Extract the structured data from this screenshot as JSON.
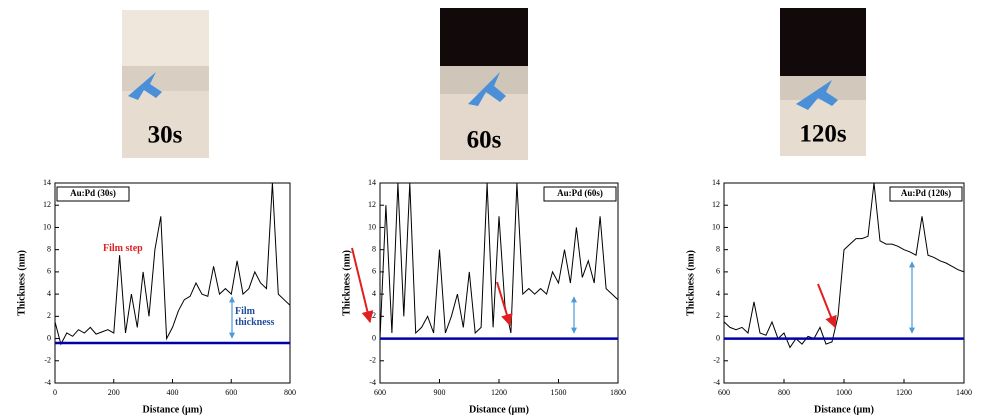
{
  "images": [
    {
      "label": "30s"
    },
    {
      "label": "60s"
    },
    {
      "label": "120s"
    }
  ],
  "chart_data": [
    {
      "type": "line",
      "xlabel": "Distance (µm)",
      "ylabel": "Thickness (nm)",
      "legend": "upper left",
      "xlim": [
        0,
        800
      ],
      "xticks": [
        0,
        200,
        400,
        600,
        800
      ],
      "ylim": [
        -4,
        14
      ],
      "yticks": [
        -4,
        -2,
        0,
        2,
        4,
        6,
        8,
        10,
        12,
        14
      ],
      "x": [
        0,
        20,
        40,
        60,
        80,
        100,
        120,
        140,
        160,
        180,
        200,
        220,
        240,
        260,
        280,
        300,
        320,
        340,
        360,
        380,
        400,
        420,
        440,
        460,
        480,
        500,
        520,
        540,
        560,
        580,
        600,
        620,
        640,
        660,
        680,
        700,
        720,
        740,
        760,
        780,
        800
      ],
      "series": [
        {
          "name": "Au:Pd (30s)",
          "color": "#000000",
          "values": [
            1.5,
            -0.5,
            0.5,
            0.2,
            0.8,
            0.5,
            1,
            0.4,
            0.6,
            0.8,
            0.5,
            7.5,
            0.5,
            4,
            1,
            6,
            2,
            8,
            11,
            0,
            1,
            2.5,
            3.5,
            3.8,
            5,
            4,
            3.8,
            6.5,
            4,
            4.5,
            4,
            7,
            4,
            4.5,
            6,
            5,
            4.5,
            14,
            4,
            3.5,
            3
          ]
        },
        {
          "color": "#0000aa",
          "values": [
            -0.4,
            -0.4,
            -0.4,
            -0.4,
            -0.4,
            -0.4,
            -0.4,
            -0.4,
            -0.4,
            -0.4,
            -0.4,
            -0.4,
            -0.4,
            -0.4,
            -0.4,
            -0.4,
            -0.4,
            -0.4,
            -0.4,
            -0.4,
            -0.4,
            -0.4,
            -0.4,
            -0.4,
            -0.4,
            -0.4,
            -0.4,
            -0.4,
            -0.4,
            -0.4,
            -0.4,
            -0.4,
            -0.4,
            -0.4,
            -0.4,
            -0.4,
            -0.4,
            -0.4,
            -0.4,
            -0.4,
            -0.4
          ]
        }
      ],
      "annotations": [
        {
          "text": "Film step",
          "color": "#e02020"
        },
        {
          "text": "Film thickness",
          "color": "#1f4e9a"
        }
      ]
    },
    {
      "type": "line",
      "xlabel": "Distance (µm)",
      "ylabel": "Thickness (nm)",
      "legend": "upper right",
      "xlim": [
        600,
        1800
      ],
      "xticks": [
        600,
        900,
        1200,
        1500,
        1800
      ],
      "ylim": [
        -4,
        14
      ],
      "yticks": [
        -4,
        -2,
        0,
        2,
        4,
        6,
        8,
        10,
        12,
        14
      ],
      "x": [
        600,
        630,
        660,
        690,
        720,
        750,
        780,
        810,
        840,
        870,
        900,
        930,
        960,
        990,
        1020,
        1050,
        1080,
        1110,
        1140,
        1170,
        1200,
        1230,
        1260,
        1290,
        1320,
        1350,
        1380,
        1410,
        1440,
        1470,
        1500,
        1530,
        1560,
        1590,
        1620,
        1650,
        1680,
        1710,
        1740,
        1770,
        1800
      ],
      "series": [
        {
          "name": "Au:Pd (60s)",
          "color": "#000000",
          "values": [
            0,
            12,
            0.5,
            14,
            2,
            14,
            0.5,
            1,
            2,
            0.5,
            8,
            0.5,
            2,
            4,
            1,
            6,
            0.5,
            1,
            14,
            1,
            11,
            3,
            0.5,
            14,
            4,
            4.5,
            4,
            4.5,
            4,
            6,
            5,
            8,
            5,
            10,
            5.5,
            7,
            5,
            11,
            4.5,
            4,
            3.5
          ]
        },
        {
          "color": "#0000aa",
          "values": [
            0,
            0,
            0,
            0,
            0,
            0,
            0,
            0,
            0,
            0,
            0,
            0,
            0,
            0,
            0,
            0,
            0,
            0,
            0,
            0,
            0,
            0,
            0,
            0,
            0,
            0,
            0,
            0,
            0,
            0,
            0,
            0,
            0,
            0,
            0,
            0,
            0,
            0,
            0,
            0,
            0
          ]
        }
      ]
    },
    {
      "type": "line",
      "xlabel": "Distance (µm)",
      "ylabel": "Thickness (nm)",
      "legend": "upper right",
      "xlim": [
        600,
        1400
      ],
      "xticks": [
        600,
        800,
        1000,
        1200,
        1400
      ],
      "ylim": [
        -4,
        14
      ],
      "yticks": [
        -4,
        -2,
        0,
        2,
        4,
        6,
        8,
        10,
        12,
        14
      ],
      "x": [
        600,
        620,
        640,
        660,
        680,
        700,
        720,
        740,
        760,
        780,
        800,
        820,
        840,
        860,
        880,
        900,
        920,
        940,
        960,
        980,
        1000,
        1020,
        1040,
        1060,
        1080,
        1100,
        1120,
        1140,
        1160,
        1180,
        1200,
        1220,
        1240,
        1260,
        1280,
        1300,
        1320,
        1340,
        1360,
        1380,
        1400
      ],
      "series": [
        {
          "name": "Au:Pd (120s)",
          "color": "#000000",
          "values": [
            1.5,
            1,
            0.8,
            1,
            0.5,
            3.3,
            0.5,
            0.3,
            1.5,
            0,
            0.5,
            -0.8,
            0,
            -0.5,
            0.2,
            0,
            1,
            -0.5,
            -0.3,
            2,
            8,
            8.5,
            9,
            9,
            9.2,
            14,
            8.8,
            8.5,
            8.5,
            8.3,
            8,
            7.8,
            7.5,
            11,
            7.5,
            7.3,
            7,
            6.8,
            6.5,
            6.2,
            6
          ]
        },
        {
          "color": "#0000aa",
          "values": [
            0,
            0,
            0,
            0,
            0,
            0,
            0,
            0,
            0,
            0,
            0,
            0,
            0,
            0,
            0,
            0,
            0,
            0,
            0,
            0,
            0,
            0,
            0,
            0,
            0,
            0,
            0,
            0,
            0,
            0,
            0,
            0,
            0,
            0,
            0,
            0,
            0,
            0,
            0,
            0,
            0
          ]
        }
      ]
    }
  ]
}
